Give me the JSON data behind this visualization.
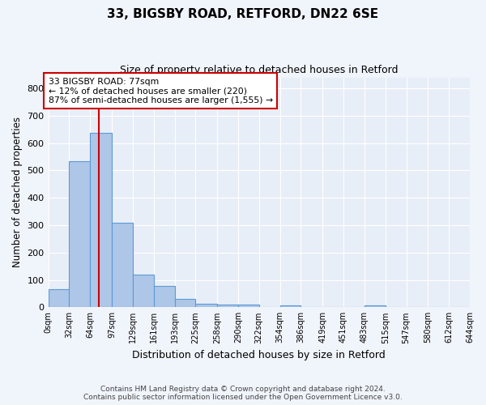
{
  "title1": "33, BIGSBY ROAD, RETFORD, DN22 6SE",
  "title2": "Size of property relative to detached houses in Retford",
  "xlabel": "Distribution of detached houses by size in Retford",
  "ylabel": "Number of detached properties",
  "bin_edges": [
    0,
    32,
    64,
    97,
    129,
    161,
    193,
    225,
    258,
    290,
    322,
    354,
    386,
    419,
    451,
    483,
    515,
    547,
    580,
    612,
    644
  ],
  "bar_heights": [
    65,
    533,
    637,
    310,
    120,
    78,
    30,
    13,
    10,
    10,
    0,
    7,
    0,
    0,
    0,
    7,
    0,
    0,
    0,
    0
  ],
  "bar_color": "#aec6e8",
  "bar_edge_color": "#5b9bd5",
  "property_size": 77,
  "annotation_line1": "33 BIGSBY ROAD: 77sqm",
  "annotation_line2": "← 12% of detached houses are smaller (220)",
  "annotation_line3": "87% of semi-detached houses are larger (1,555) →",
  "red_line_color": "#cc0000",
  "annotation_box_color": "#ffffff",
  "annotation_box_edge": "#cc0000",
  "ylim": [
    0,
    840
  ],
  "yticks": [
    0,
    100,
    200,
    300,
    400,
    500,
    600,
    700,
    800
  ],
  "bg_color": "#e8eef7",
  "grid_color": "#ffffff",
  "fig_bg_color": "#f0f4fb",
  "footer_line1": "Contains HM Land Registry data © Crown copyright and database right 2024.",
  "footer_line2": "Contains public sector information licensed under the Open Government Licence v3.0."
}
